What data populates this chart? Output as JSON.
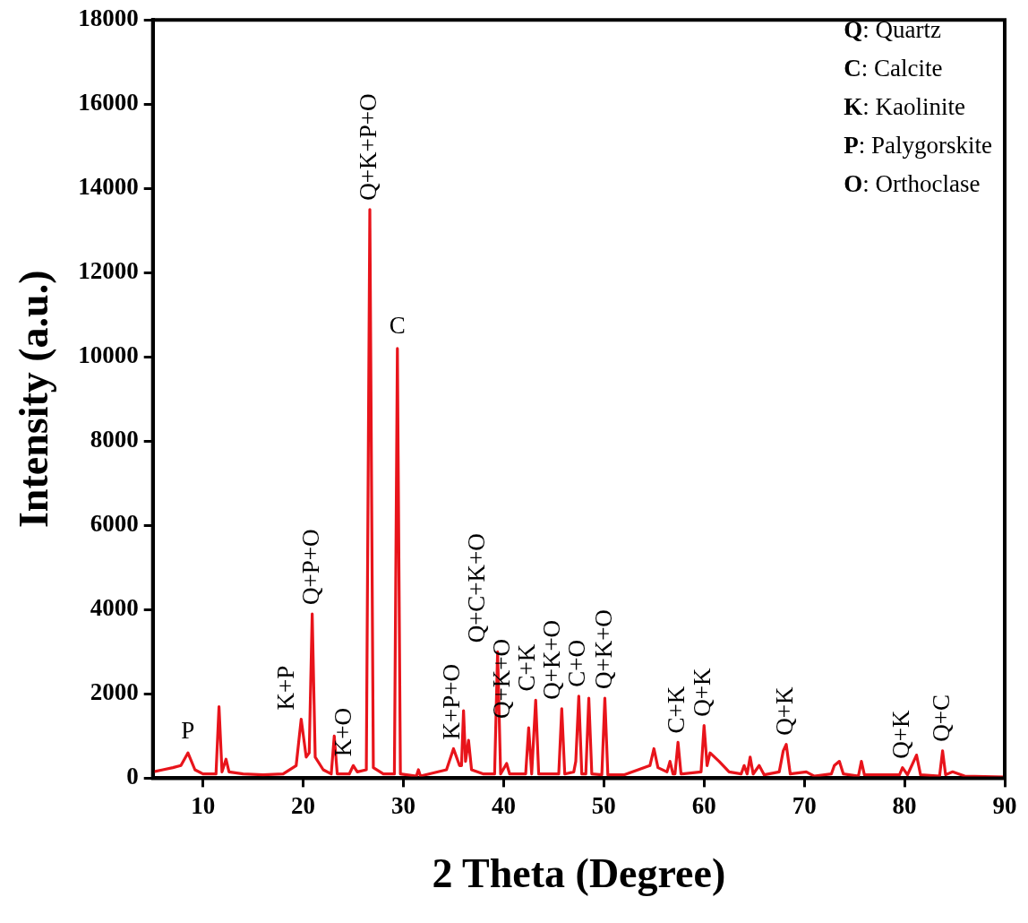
{
  "chart_data": {
    "type": "line",
    "xlabel": "2 Theta (Degree)",
    "ylabel": "Intensity (a.u.)",
    "xlim": [
      5,
      90
    ],
    "xticks": [
      10,
      20,
      30,
      40,
      50,
      60,
      70,
      80,
      90
    ],
    "ylim": [
      0,
      18000
    ],
    "yticks": [
      0,
      2000,
      4000,
      6000,
      8000,
      10000,
      12000,
      14000,
      16000,
      18000
    ],
    "grid": false,
    "legend": false,
    "marker": "none",
    "line_style": "solid",
    "series": [
      {
        "color": "#e8141b",
        "x": [
          5,
          6,
          7,
          7.8,
          8.5,
          9.2,
          10,
          11.3,
          11.6,
          11.9,
          12.3,
          12.6,
          14,
          16,
          18,
          19.3,
          19.8,
          20.3,
          20.6,
          20.9,
          21.2,
          22,
          22.8,
          23.1,
          23.4,
          24.6,
          25,
          25.4,
          26.3,
          26.65,
          27,
          28,
          29.1,
          29.4,
          29.7,
          31.3,
          31.5,
          31.7,
          34.3,
          35,
          35.6,
          35.8,
          36,
          36.2,
          36.5,
          36.8,
          38,
          39.1,
          39.4,
          39.7,
          40.3,
          40.6,
          42.2,
          42.5,
          42.8,
          43.2,
          43.5,
          45.5,
          45.8,
          46.1,
          47,
          47.2,
          47.5,
          47.8,
          48.2,
          48.5,
          48.8,
          49.8,
          50.1,
          50.4,
          52,
          54.6,
          55,
          55.4,
          56.3,
          56.6,
          56.9,
          57.1,
          57.4,
          57.7,
          59.7,
          60,
          60.3,
          60.6,
          61.5,
          62.5,
          63.7,
          64,
          64.3,
          64.6,
          64.9,
          65.5,
          66,
          67.5,
          67.9,
          68.2,
          68.6,
          70.2,
          71,
          72.7,
          73,
          73.5,
          73.9,
          75.4,
          75.7,
          76,
          79.5,
          79.8,
          80.3,
          81.2,
          81.6,
          83.5,
          83.8,
          84.1,
          84.8,
          86,
          90
        ],
        "values": [
          150,
          200,
          250,
          300,
          600,
          200,
          100,
          100,
          1700,
          150,
          450,
          150,
          100,
          80,
          100,
          300,
          1400,
          500,
          600,
          3900,
          500,
          200,
          100,
          1000,
          100,
          100,
          300,
          150,
          200,
          13500,
          250,
          100,
          100,
          10200,
          100,
          50,
          200,
          50,
          200,
          700,
          300,
          300,
          1600,
          400,
          900,
          200,
          100,
          100,
          3000,
          100,
          350,
          100,
          100,
          1200,
          100,
          1850,
          100,
          100,
          1650,
          100,
          150,
          400,
          1950,
          100,
          100,
          1900,
          100,
          80,
          1900,
          80,
          80,
          300,
          700,
          250,
          150,
          400,
          100,
          100,
          850,
          100,
          150,
          1250,
          300,
          600,
          400,
          150,
          100,
          300,
          100,
          500,
          100,
          300,
          80,
          150,
          650,
          800,
          100,
          150,
          50,
          100,
          300,
          400,
          100,
          50,
          400,
          80,
          80,
          250,
          80,
          550,
          80,
          50,
          650,
          80,
          150,
          50,
          30
        ]
      }
    ],
    "annotations": [
      {
        "text": "P",
        "x": 8.5,
        "y": 600
      },
      {
        "text": "K+P",
        "x": 19.8,
        "y": 1400
      },
      {
        "text": "Q+P+O",
        "x": 20.9,
        "y": 3900
      },
      {
        "text": "K+O",
        "x": 25,
        "y": 300
      },
      {
        "text": "Q+K+P+O",
        "x": 26.65,
        "y": 13500
      },
      {
        "text": "C",
        "x": 29.4,
        "y": 10200
      },
      {
        "text": "K+P+O",
        "x": 35,
        "y": 700
      },
      {
        "text": "Q+C+K+O",
        "x": 39.4,
        "y": 3000
      },
      {
        "text": "Q+K+O",
        "x": 42.5,
        "y": 1200
      },
      {
        "text": "C+K",
        "x": 43.2,
        "y": 1850
      },
      {
        "text": "Q+K+O",
        "x": 45.8,
        "y": 1650
      },
      {
        "text": "C+O",
        "x": 47.5,
        "y": 1950
      },
      {
        "text": "Q+K+O",
        "x": 50.1,
        "y": 1900
      },
      {
        "text": "C+K",
        "x": 57.4,
        "y": 850
      },
      {
        "text": "Q+K",
        "x": 60,
        "y": 1250
      },
      {
        "text": "Q+K",
        "x": 68.2,
        "y": 800
      },
      {
        "text": "Q+K",
        "x": 79.8,
        "y": 250
      },
      {
        "text": "Q+C",
        "x": 83.8,
        "y": 650
      },
      "Q: Quartz",
      "C: Calcite",
      "K: Kaolinite",
      "P: Palygorskite",
      "O: Orthoclase"
    ]
  }
}
